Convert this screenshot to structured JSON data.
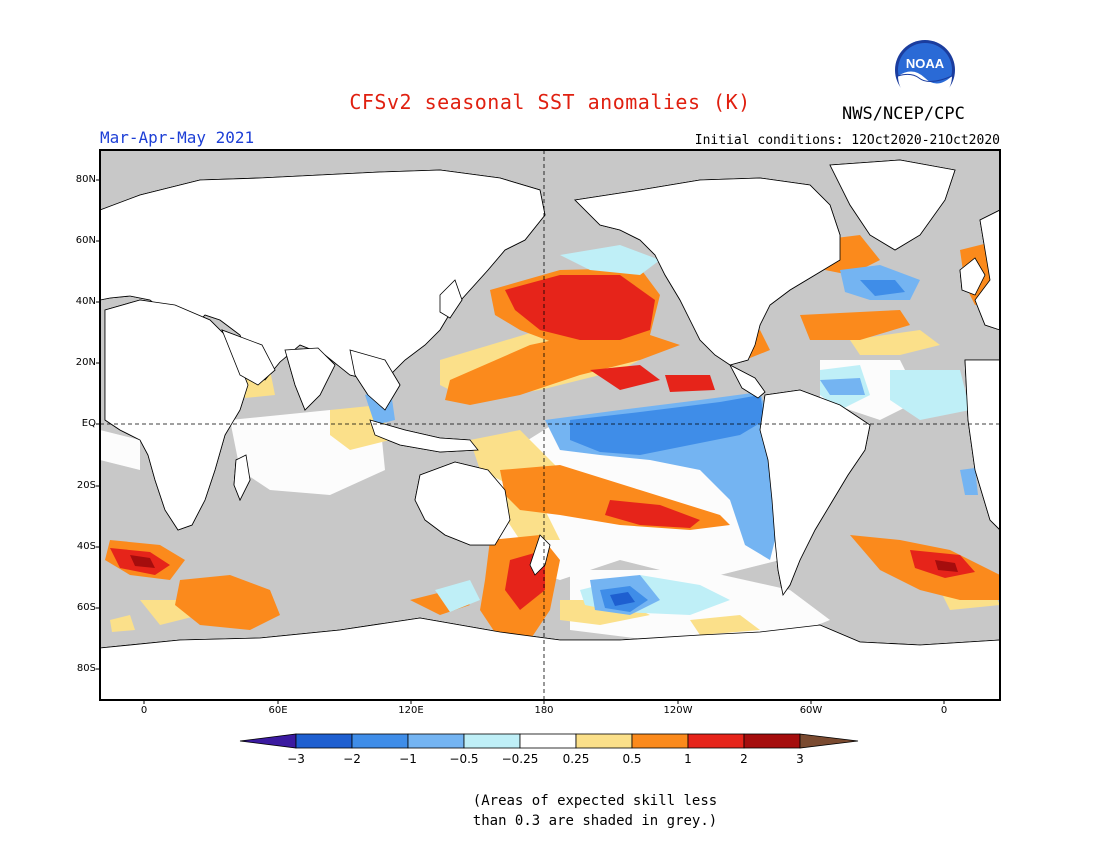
{
  "header": {
    "title": "CFSv2 seasonal SST anomalies (K)",
    "agency": "NWS/NCEP/CPC",
    "season": "Mar-Apr-May 2021",
    "initial_conditions": "Initial conditions: 12Oct2020-21Oct2020",
    "logo_icon": "noaa-logo-icon",
    "logo_text": "NOAA"
  },
  "map": {
    "projection": "cylindrical-equidistant",
    "lat_labels": [
      "80N",
      "60N",
      "40N",
      "20N",
      "EQ",
      "20S",
      "40S",
      "60S",
      "80S"
    ],
    "lon_labels": [
      "0",
      "60E",
      "120E",
      "180",
      "120W",
      "60W",
      "0"
    ],
    "dashed_reference_lines": [
      "EQ",
      "180"
    ],
    "land_color": "#ffffff",
    "low_skill_color": "#c8c8c8"
  },
  "colorbar": {
    "ticks": [
      "−3",
      "−2",
      "−1",
      "−0.5",
      "−0.25",
      "0.25",
      "0.5",
      "1",
      "2",
      "3"
    ],
    "colors": [
      "#3b1aa0",
      "#1e5fd0",
      "#3f8de8",
      "#74b4f2",
      "#bfeff7",
      "#ffffff",
      "#fbe08a",
      "#fb8a1c",
      "#e6241a",
      "#a50d0d",
      "#7a4a30"
    ]
  },
  "footnote": {
    "line1": "(Areas of expected skill less",
    "line2": "than 0.3 are shaded in grey.)"
  }
}
